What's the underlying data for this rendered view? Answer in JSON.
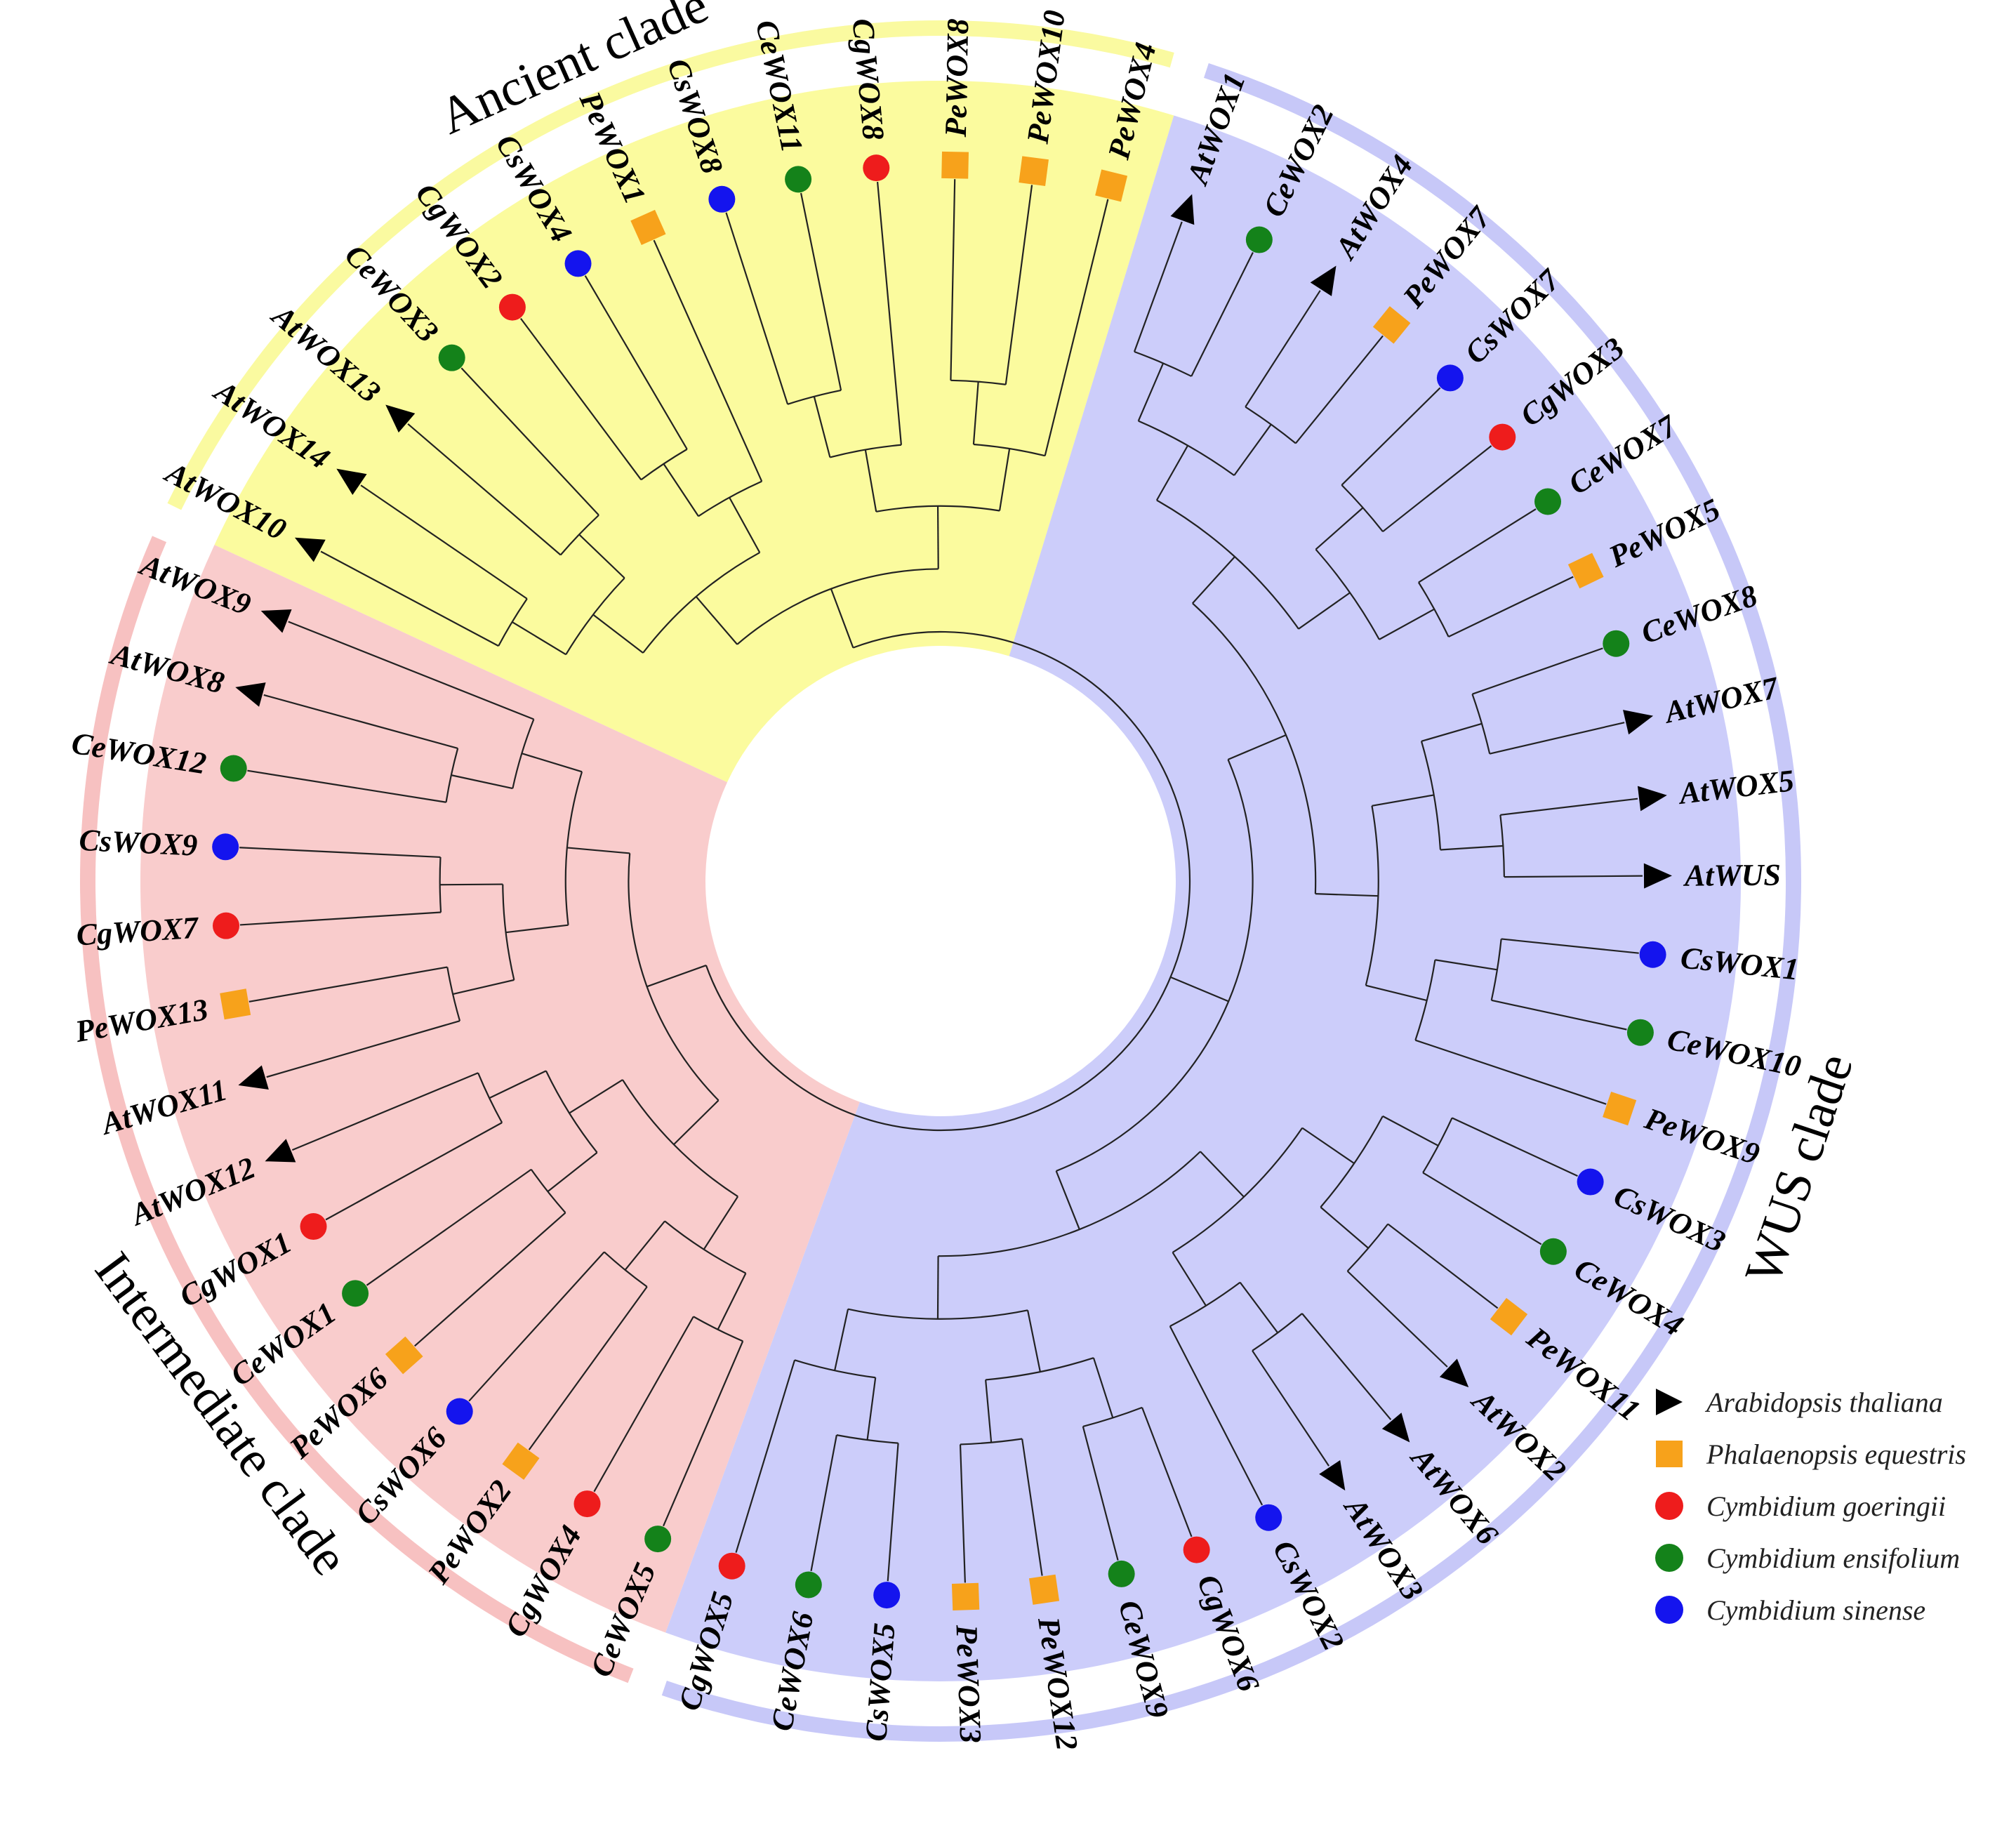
{
  "diagram": {
    "type": "circular-phylogenetic-tree",
    "clades": [
      {
        "id": "intermediate",
        "label": "Intermediate clade",
        "color": "#f9cccc",
        "ring_color": "#f7c1c1"
      },
      {
        "id": "ancient",
        "label": "Ancient clade",
        "color": "#fbfb9e",
        "ring_color": "#fafaa0"
      },
      {
        "id": "wus",
        "label": "WUS clade",
        "color": "#cccdfa",
        "ring_color": "#c7c8f8"
      }
    ],
    "species": {
      "At": {
        "name": "Arabidopsis thaliana",
        "shape": "triangle",
        "color": "#000000"
      },
      "Pe": {
        "name": "Phalaenopsis equestris",
        "shape": "square",
        "color": "#f7a21b"
      },
      "Cg": {
        "name": "Cymbidium goeringii",
        "shape": "circle",
        "color": "#ee1c1c"
      },
      "Ce": {
        "name": "Cymbidium ensifolium",
        "shape": "circle",
        "color": "#14821a"
      },
      "Cs": {
        "name": "Cymbidium sinense",
        "shape": "circle",
        "color": "#1414ee"
      }
    },
    "leaves": [
      {
        "label": "AtWOX10",
        "species": "At",
        "clade": "ancient"
      },
      {
        "label": "AtWOX14",
        "species": "At",
        "clade": "ancient"
      },
      {
        "label": "AtWOX13",
        "species": "At",
        "clade": "ancient"
      },
      {
        "label": "CeWOX3",
        "species": "Ce",
        "clade": "ancient"
      },
      {
        "label": "CgWOX2",
        "species": "Cg",
        "clade": "ancient"
      },
      {
        "label": "CsWOX4",
        "species": "Cs",
        "clade": "ancient"
      },
      {
        "label": "PeWOX1",
        "species": "Pe",
        "clade": "ancient"
      },
      {
        "label": "CsWOX8",
        "species": "Cs",
        "clade": "ancient"
      },
      {
        "label": "CeWOX11",
        "species": "Ce",
        "clade": "ancient"
      },
      {
        "label": "CgWOX8",
        "species": "Cg",
        "clade": "ancient"
      },
      {
        "label": "PeWOX8",
        "species": "Pe",
        "clade": "ancient"
      },
      {
        "label": "PeWOX10",
        "species": "Pe",
        "clade": "ancient"
      },
      {
        "label": "PeWOX4",
        "species": "Pe",
        "clade": "ancient"
      },
      {
        "label": "AtWOX1",
        "species": "At",
        "clade": "wus"
      },
      {
        "label": "CeWOX2",
        "species": "Ce",
        "clade": "wus"
      },
      {
        "label": "AtWOX4",
        "species": "At",
        "clade": "wus"
      },
      {
        "label": "PeWOX7",
        "species": "Pe",
        "clade": "wus"
      },
      {
        "label": "CsWOX7",
        "species": "Cs",
        "clade": "wus"
      },
      {
        "label": "CgWOX3",
        "species": "Cg",
        "clade": "wus"
      },
      {
        "label": "CeWOX7",
        "species": "Ce",
        "clade": "wus"
      },
      {
        "label": "PeWOX5",
        "species": "Pe",
        "clade": "wus"
      },
      {
        "label": "CeWOX8",
        "species": "Ce",
        "clade": "wus"
      },
      {
        "label": "AtWOX7",
        "species": "At",
        "clade": "wus"
      },
      {
        "label": "AtWOX5",
        "species": "At",
        "clade": "wus"
      },
      {
        "label": "AtWUS",
        "species": "At",
        "clade": "wus"
      },
      {
        "label": "CsWOX1",
        "species": "Cs",
        "clade": "wus"
      },
      {
        "label": "CeWOX10",
        "species": "Ce",
        "clade": "wus"
      },
      {
        "label": "PeWOX9",
        "species": "Pe",
        "clade": "wus"
      },
      {
        "label": "CsWOX3",
        "species": "Cs",
        "clade": "wus"
      },
      {
        "label": "CeWOX4",
        "species": "Ce",
        "clade": "wus"
      },
      {
        "label": "PeWOX11",
        "species": "Pe",
        "clade": "wus"
      },
      {
        "label": "AtWOX2",
        "species": "At",
        "clade": "wus"
      },
      {
        "label": "AtWOX6",
        "species": "At",
        "clade": "wus"
      },
      {
        "label": "AtWOX3",
        "species": "At",
        "clade": "wus"
      },
      {
        "label": "CsWOX2",
        "species": "Cs",
        "clade": "wus"
      },
      {
        "label": "CgWOX6",
        "species": "Cg",
        "clade": "wus"
      },
      {
        "label": "CeWOX9",
        "species": "Ce",
        "clade": "wus"
      },
      {
        "label": "PeWOX12",
        "species": "Pe",
        "clade": "wus"
      },
      {
        "label": "PeWOX3",
        "species": "Pe",
        "clade": "wus"
      },
      {
        "label": "CsWOX5",
        "species": "Cs",
        "clade": "wus"
      },
      {
        "label": "CeWOX6",
        "species": "Ce",
        "clade": "wus"
      },
      {
        "label": "CgWOX5",
        "species": "Cg",
        "clade": "wus"
      },
      {
        "label": "CeWOX5",
        "species": "Ce",
        "clade": "intermediate"
      },
      {
        "label": "CgWOX4",
        "species": "Cg",
        "clade": "intermediate"
      },
      {
        "label": "PeWOX2",
        "species": "Pe",
        "clade": "intermediate"
      },
      {
        "label": "CsWOX6",
        "species": "Cs",
        "clade": "intermediate"
      },
      {
        "label": "PeWOX6",
        "species": "Pe",
        "clade": "intermediate"
      },
      {
        "label": "CeWOX1",
        "species": "Ce",
        "clade": "intermediate"
      },
      {
        "label": "CgWOX1",
        "species": "Cg",
        "clade": "intermediate"
      },
      {
        "label": "AtWOX12",
        "species": "At",
        "clade": "intermediate"
      },
      {
        "label": "AtWOX11",
        "species": "At",
        "clade": "intermediate"
      },
      {
        "label": "PeWOX13",
        "species": "Pe",
        "clade": "intermediate"
      },
      {
        "label": "CgWOX7",
        "species": "Cg",
        "clade": "intermediate"
      },
      {
        "label": "CsWOX9",
        "species": "Cs",
        "clade": "intermediate"
      },
      {
        "label": "CeWOX12",
        "species": "Ce",
        "clade": "intermediate"
      },
      {
        "label": "AtWOX8",
        "species": "At",
        "clade": "intermediate"
      },
      {
        "label": "AtWOX9",
        "species": "At",
        "clade": "intermediate"
      }
    ]
  },
  "legend": {
    "items": [
      {
        "species": "At",
        "label": "Arabidopsis thaliana"
      },
      {
        "species": "Pe",
        "label": "Phalaenopsis equestris"
      },
      {
        "species": "Cg",
        "label": "Cymbidium goeringii"
      },
      {
        "species": "Ce",
        "label": "Cymbidium ensifolium"
      },
      {
        "species": "Cs",
        "label": "Cymbidium sinense"
      }
    ]
  }
}
